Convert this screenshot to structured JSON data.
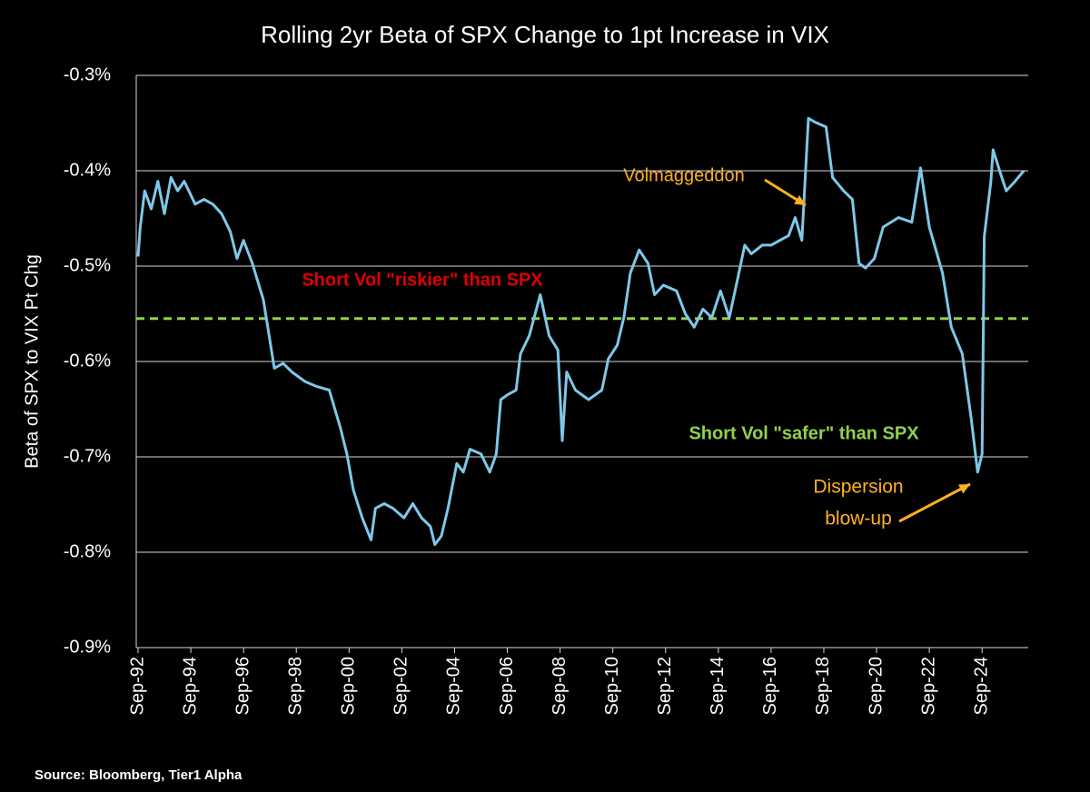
{
  "chart_data": {
    "type": "line",
    "title": "Rolling 2yr Beta of SPX Change to 1pt Increase in VIX",
    "y_label": "Beta of SPX to VIX Pt Chg",
    "source": "Source: Bloomberg, Tier1 Alpha",
    "x": [
      "1992-09",
      "1992-10",
      "1992-12",
      "1993-03",
      "1993-06",
      "1993-09",
      "1993-12",
      "1994-03",
      "1994-06",
      "1994-11",
      "1995-03",
      "1995-07",
      "1995-11",
      "1996-03",
      "1996-06",
      "1996-09",
      "1997-01",
      "1997-06",
      "1997-08",
      "1997-11",
      "1998-03",
      "1998-07",
      "1999-01",
      "1999-06",
      "1999-12",
      "2000-05",
      "2000-08",
      "2000-11",
      "2001-03",
      "2001-07",
      "2001-09",
      "2002-01",
      "2002-05",
      "2002-10",
      "2003-02",
      "2003-06",
      "2003-10",
      "2003-12",
      "2004-03",
      "2004-06",
      "2004-10",
      "2005-01",
      "2005-04",
      "2005-09",
      "2006-01",
      "2006-04",
      "2006-06",
      "2006-09",
      "2007-01",
      "2007-03",
      "2007-07",
      "2007-12",
      "2008-04",
      "2008-08",
      "2008-10",
      "2008-12",
      "2009-04",
      "2009-10",
      "2010-04",
      "2010-07",
      "2010-11",
      "2011-02",
      "2011-05",
      "2011-09",
      "2012-01",
      "2012-04",
      "2012-08",
      "2013-02",
      "2013-06",
      "2013-10",
      "2014-02",
      "2014-06",
      "2014-10",
      "2015-02",
      "2015-06",
      "2015-09",
      "2015-12",
      "2016-05",
      "2016-09",
      "2017-01",
      "2017-05",
      "2017-08",
      "2017-11",
      "2018-02",
      "2018-05",
      "2018-10",
      "2019-01",
      "2019-06",
      "2019-10",
      "2020-01",
      "2020-04",
      "2020-08",
      "2020-12",
      "2021-07",
      "2022-01",
      "2022-05",
      "2022-09",
      "2023-03",
      "2023-07",
      "2023-12",
      "2024-04",
      "2024-07",
      "2024-09",
      "2024-10",
      "2025-01",
      "2025-02",
      "2025-05",
      "2025-08",
      "2025-12",
      "2026-04"
    ],
    "values": [
      -0.49,
      -0.459,
      -0.421,
      -0.44,
      -0.411,
      -0.445,
      -0.407,
      -0.421,
      -0.411,
      -0.435,
      -0.43,
      -0.435,
      -0.445,
      -0.464,
      -0.492,
      -0.473,
      -0.497,
      -0.535,
      -0.564,
      -0.607,
      -0.602,
      -0.611,
      -0.621,
      -0.626,
      -0.63,
      -0.669,
      -0.697,
      -0.735,
      -0.764,
      -0.787,
      -0.754,
      -0.749,
      -0.754,
      -0.764,
      -0.749,
      -0.764,
      -0.773,
      -0.792,
      -0.783,
      -0.754,
      -0.707,
      -0.716,
      -0.692,
      -0.697,
      -0.716,
      -0.697,
      -0.64,
      -0.635,
      -0.63,
      -0.592,
      -0.573,
      -0.53,
      -0.573,
      -0.588,
      -0.683,
      -0.611,
      -0.63,
      -0.64,
      -0.63,
      -0.597,
      -0.583,
      -0.554,
      -0.507,
      -0.483,
      -0.497,
      -0.53,
      -0.52,
      -0.526,
      -0.55,
      -0.564,
      -0.545,
      -0.554,
      -0.526,
      -0.554,
      -0.511,
      -0.478,
      -0.487,
      -0.478,
      -0.478,
      -0.473,
      -0.468,
      -0.449,
      -0.473,
      -0.345,
      -0.349,
      -0.354,
      -0.407,
      -0.421,
      -0.43,
      -0.497,
      -0.502,
      -0.492,
      -0.459,
      -0.449,
      -0.454,
      -0.397,
      -0.459,
      -0.507,
      -0.564,
      -0.592,
      -0.659,
      -0.716,
      -0.697,
      -0.469,
      -0.411,
      -0.378,
      -0.4,
      -0.421,
      -0.411,
      -0.4
    ],
    "color": "#7ec8e8",
    "xlim": [
      "1992-09",
      "2026-06"
    ],
    "xticks": [
      {
        "value": "1992-09",
        "label": "Sep-92"
      },
      {
        "value": "1994-09",
        "label": "Sep-94"
      },
      {
        "value": "1996-09",
        "label": "Sep-96"
      },
      {
        "value": "1998-09",
        "label": "Sep-98"
      },
      {
        "value": "2000-09",
        "label": "Sep-00"
      },
      {
        "value": "2002-09",
        "label": "Sep-02"
      },
      {
        "value": "2004-09",
        "label": "Sep-04"
      },
      {
        "value": "2006-09",
        "label": "Sep-06"
      },
      {
        "value": "2008-09",
        "label": "Sep-08"
      },
      {
        "value": "2010-09",
        "label": "Sep-10"
      },
      {
        "value": "2012-09",
        "label": "Sep-12"
      },
      {
        "value": "2014-09",
        "label": "Sep-14"
      },
      {
        "value": "2016-09",
        "label": "Sep-16"
      },
      {
        "value": "2018-09",
        "label": "Sep-18"
      },
      {
        "value": "2020-09",
        "label": "Sep-20"
      },
      {
        "value": "2022-09",
        "label": "Sep-22"
      },
      {
        "value": "2024-09",
        "label": "Sep-24"
      }
    ],
    "ylim": [
      -0.9,
      -0.3
    ],
    "yticks": [
      {
        "value": -0.9,
        "label": "-0.9%"
      },
      {
        "value": -0.8,
        "label": "-0.8%"
      },
      {
        "value": -0.7,
        "label": "-0.7%"
      },
      {
        "value": -0.6,
        "label": "-0.6%"
      },
      {
        "value": -0.5,
        "label": "-0.5%"
      },
      {
        "value": -0.4,
        "label": "-0.4%"
      },
      {
        "value": -0.3,
        "label": "-0.3%"
      }
    ],
    "grid": true,
    "reference_line": {
      "value": -0.555,
      "color": "#92d050"
    },
    "annotations": [
      {
        "lines": [
          "Short Vol \"riskier\" than SPX"
        ],
        "color": "#e00000"
      },
      {
        "lines": [
          "Short Vol \"safer\" than SPX"
        ],
        "color": "#92d050"
      },
      {
        "lines": [
          "Volmaggeddon"
        ],
        "color": "#ffb020"
      },
      {
        "lines": [
          "Dispersion",
          "blow-up"
        ],
        "color": "#ffb020"
      }
    ]
  }
}
